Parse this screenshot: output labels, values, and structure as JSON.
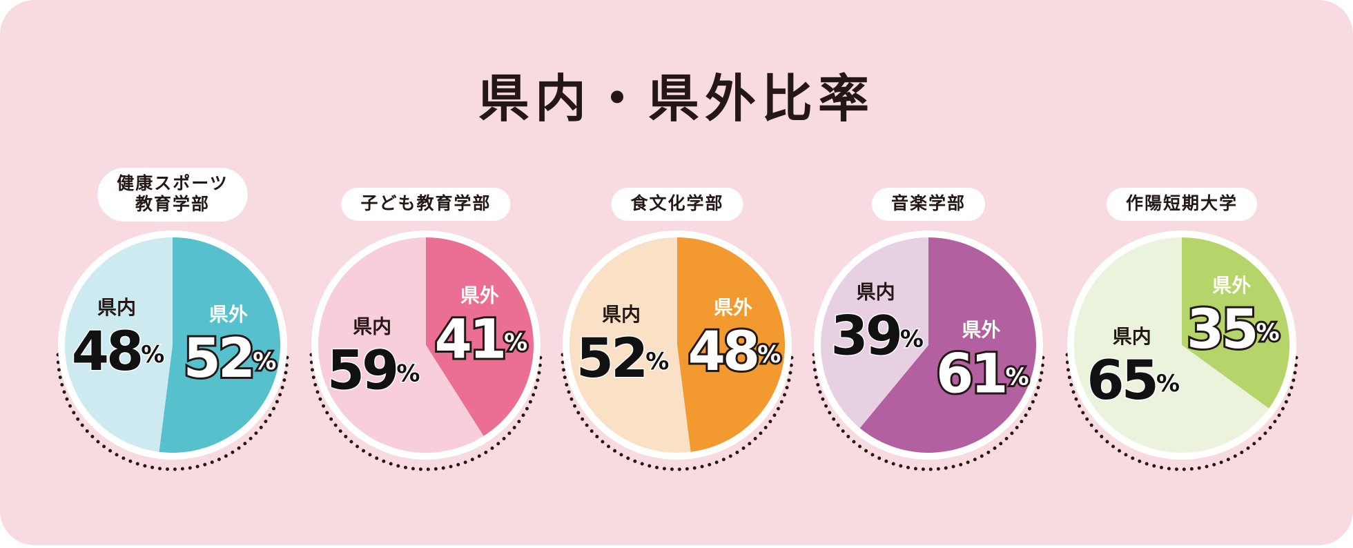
{
  "title": "県内・県外比率",
  "chart_data": [
    {
      "type": "pie",
      "title": [
        "健康スポーツ",
        "教育学部"
      ],
      "categories": [
        "県内",
        "県外"
      ],
      "values": [
        48,
        52
      ],
      "value_labels": [
        "48%",
        "52%"
      ],
      "colors": [
        "#cdeaf0",
        "#56c0cc"
      ]
    },
    {
      "type": "pie",
      "title": [
        "子ども教育学部"
      ],
      "categories": [
        "県内",
        "県外"
      ],
      "values": [
        59,
        41
      ],
      "value_labels": [
        "59%",
        "41%"
      ],
      "colors": [
        "#f8cddc",
        "#ea6f93"
      ]
    },
    {
      "type": "pie",
      "title": [
        "食文化学部"
      ],
      "categories": [
        "県内",
        "県外"
      ],
      "values": [
        52,
        48
      ],
      "value_labels": [
        "52%",
        "48%"
      ],
      "colors": [
        "#fae0c4",
        "#f29a30"
      ]
    },
    {
      "type": "pie",
      "title": [
        "音楽学部"
      ],
      "categories": [
        "県内",
        "県外"
      ],
      "values": [
        39,
        61
      ],
      "value_labels": [
        "39%",
        "61%"
      ],
      "colors": [
        "#e8d0e3",
        "#b360a0"
      ]
    },
    {
      "type": "pie",
      "title": [
        "作陽短期大学"
      ],
      "categories": [
        "県内",
        "県外"
      ],
      "values": [
        65,
        35
      ],
      "value_labels": [
        "65%",
        "35%"
      ],
      "colors": [
        "#ecf3dc",
        "#b5d46a"
      ]
    }
  ]
}
